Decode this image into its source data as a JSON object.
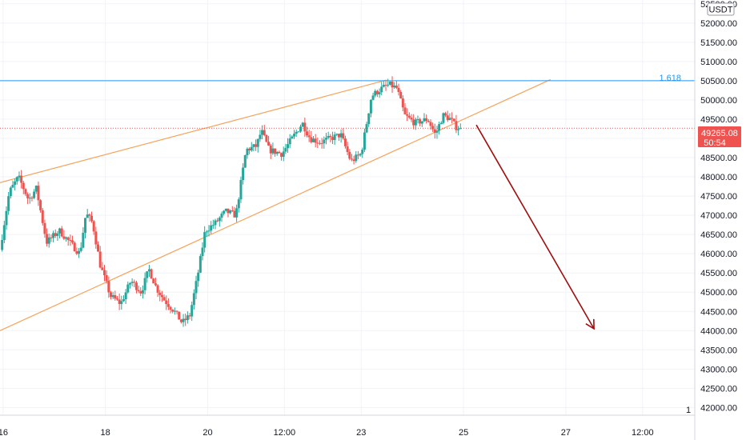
{
  "currency_label": "USDT",
  "colors": {
    "up": "#26a69a",
    "down": "#ef5350",
    "wedge": "#f7a35c",
    "fib": "#2196f3",
    "arrow": "#a10d0d",
    "grid": "#f0f3fa",
    "axis_text": "#131722",
    "price_line": "#ef5350"
  },
  "chart_data": {
    "type": "candlestick",
    "ylim": [
      41800,
      52600
    ],
    "y_ticks": [
      "42000.00",
      "42500.00",
      "43000.00",
      "43500.00",
      "44000.00",
      "44500.00",
      "45000.00",
      "45500.00",
      "46000.00",
      "46500.00",
      "47000.00",
      "47500.00",
      "48000.00",
      "48500.00",
      "49000.00",
      "49500.00",
      "50000.00",
      "50500.00",
      "51000.00",
      "51500.00",
      "52000.00",
      "52500.00"
    ],
    "x_ticks": [
      "16",
      "18",
      "20",
      "12:00",
      "23",
      "25",
      "27",
      "12:00"
    ],
    "x_tick_times": [
      0,
      2,
      4,
      5.5,
      7,
      9,
      11,
      12.5
    ],
    "x_range_days": [
      -0.06,
      13.52
    ],
    "last_price": 49265.08,
    "last_price_label": "49265.08",
    "countdown": "50:54",
    "fib_level": {
      "label": "1.618",
      "price": 50500
    },
    "pane_label": "1",
    "trendlines": [
      {
        "name": "wedge-upper",
        "from": [
          -0.06,
          47850
        ],
        "to": [
          7.5,
          50520
        ]
      },
      {
        "name": "wedge-lower",
        "from": [
          -0.06,
          44000
        ],
        "to": [
          10.7,
          50530
        ]
      }
    ],
    "projection_arrow": {
      "from": [
        9.25,
        49350
      ],
      "to": [
        11.55,
        44050
      ]
    },
    "price_path": [
      [
        -0.06,
        46100
      ],
      [
        0.12,
        47600
      ],
      [
        0.3,
        48000
      ],
      [
        0.5,
        47400
      ],
      [
        0.65,
        47700
      ],
      [
        0.85,
        46300
      ],
      [
        1.1,
        46600
      ],
      [
        1.3,
        46300
      ],
      [
        1.5,
        46000
      ],
      [
        1.62,
        47050
      ],
      [
        1.75,
        46800
      ],
      [
        1.9,
        45700
      ],
      [
        2.1,
        44900
      ],
      [
        2.3,
        44700
      ],
      [
        2.5,
        45300
      ],
      [
        2.7,
        45000
      ],
      [
        2.85,
        45600
      ],
      [
        3.0,
        45100
      ],
      [
        3.15,
        44800
      ],
      [
        3.35,
        44500
      ],
      [
        3.5,
        44200
      ],
      [
        3.65,
        44400
      ],
      [
        3.8,
        45400
      ],
      [
        3.95,
        46600
      ],
      [
        4.15,
        46800
      ],
      [
        4.35,
        47100
      ],
      [
        4.55,
        47000
      ],
      [
        4.75,
        48700
      ],
      [
        4.95,
        48800
      ],
      [
        5.05,
        49200
      ],
      [
        5.2,
        48700
      ],
      [
        5.45,
        48600
      ],
      [
        5.65,
        49000
      ],
      [
        5.85,
        49400
      ],
      [
        6.0,
        49000
      ],
      [
        6.2,
        48900
      ],
      [
        6.4,
        49000
      ],
      [
        6.6,
        49100
      ],
      [
        6.8,
        48400
      ],
      [
        7.0,
        48600
      ],
      [
        7.2,
        50100
      ],
      [
        7.4,
        50300
      ],
      [
        7.55,
        50400
      ],
      [
        7.7,
        50300
      ],
      [
        7.85,
        49600
      ],
      [
        8.05,
        49400
      ],
      [
        8.3,
        49500
      ],
      [
        8.45,
        49100
      ],
      [
        8.6,
        49600
      ],
      [
        8.75,
        49500
      ],
      [
        8.85,
        49300
      ],
      [
        8.95,
        49265
      ]
    ]
  }
}
